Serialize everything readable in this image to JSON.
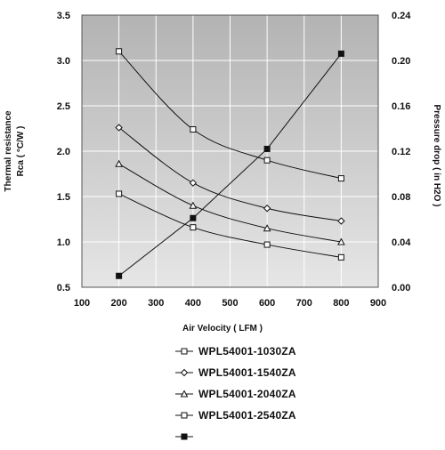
{
  "chart_data": {
    "type": "line",
    "xlabel": "Air Velocity ( LFM )",
    "ylabel_left": [
      "Thermal resistance",
      "Rca ( °C/W )"
    ],
    "ylabel_right": "Pressure drop ( in H2O )",
    "xlim": [
      100,
      900
    ],
    "ylim_left": [
      0.5,
      3.5
    ],
    "ylim_right": [
      0.0,
      0.24
    ],
    "x_ticks": [
      100,
      200,
      300,
      400,
      500,
      600,
      700,
      800,
      900
    ],
    "y_ticks_left": [
      "0.5",
      "1.0",
      "1.5",
      "2.0",
      "2.5",
      "3.0",
      "3.5"
    ],
    "y_ticks_right": [
      "0.00",
      "0.04",
      "0.08",
      "0.12",
      "0.16",
      "0.20",
      "0.24"
    ],
    "grid": true,
    "legend_position": "bottom",
    "series": [
      {
        "name": "WPL54001-1030ZA",
        "axis": "left",
        "marker": "square",
        "x": [
          200,
          400,
          600,
          800
        ],
        "y": [
          3.1,
          2.24,
          1.9,
          1.7
        ]
      },
      {
        "name": "WPL54001-1540ZA",
        "axis": "left",
        "marker": "diamond",
        "x": [
          200,
          400,
          600,
          800
        ],
        "y": [
          2.26,
          1.65,
          1.37,
          1.23
        ]
      },
      {
        "name": "WPL54001-2040ZA",
        "axis": "left",
        "marker": "triangle",
        "x": [
          200,
          400,
          600,
          800
        ],
        "y": [
          1.86,
          1.4,
          1.15,
          1.0
        ]
      },
      {
        "name": "WPL54001-2540ZA",
        "axis": "left",
        "marker": "square",
        "x": [
          200,
          400,
          600,
          800
        ],
        "y": [
          1.53,
          1.16,
          0.97,
          0.83
        ]
      },
      {
        "name": "",
        "axis": "right",
        "marker": "filled-square",
        "x": [
          200,
          400,
          600,
          800
        ],
        "y": [
          0.01,
          0.061,
          0.122,
          0.206
        ]
      }
    ]
  },
  "colors": {
    "plot_background": "#bfbfbf",
    "line": "#111111",
    "gridline": "#ffffff"
  }
}
